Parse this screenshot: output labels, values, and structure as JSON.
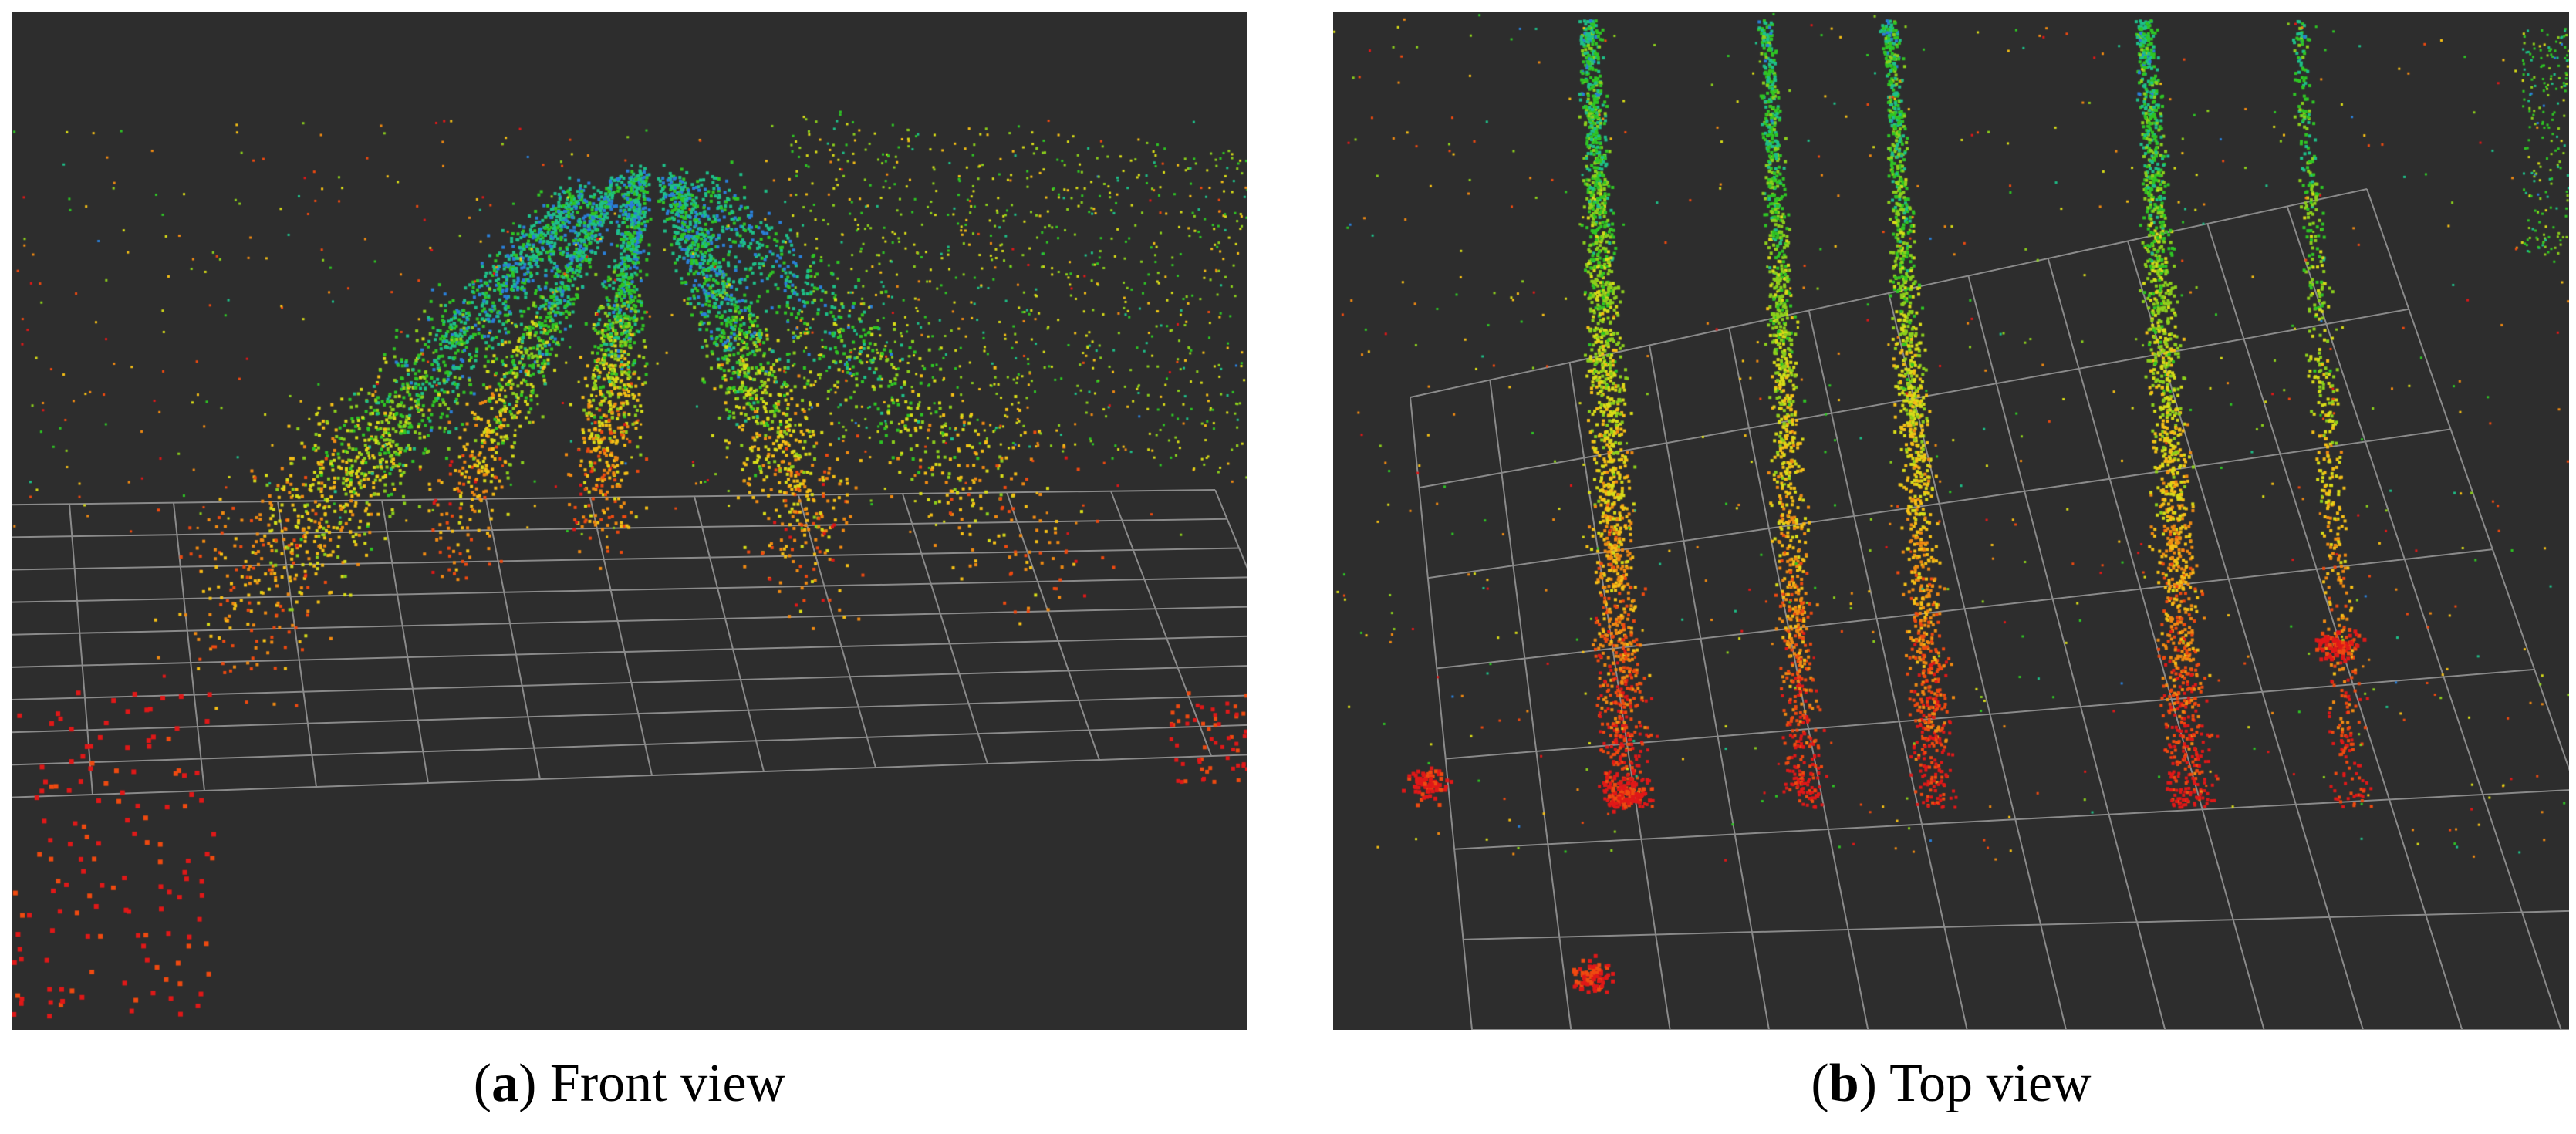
{
  "figure": {
    "panel_a": {
      "letter": "a",
      "caption_text": " Front view"
    },
    "panel_b": {
      "letter": "b",
      "caption_text": " Top view"
    }
  },
  "colors": {
    "background": "#2d2d2d",
    "grid": "#8a8a8a",
    "point_palette": [
      "#e01818",
      "#ef4a10",
      "#f08a12",
      "#f5bf16",
      "#d8dc18",
      "#8ccf1c",
      "#2fc524",
      "#1ec089",
      "#2a7fd8"
    ]
  }
}
